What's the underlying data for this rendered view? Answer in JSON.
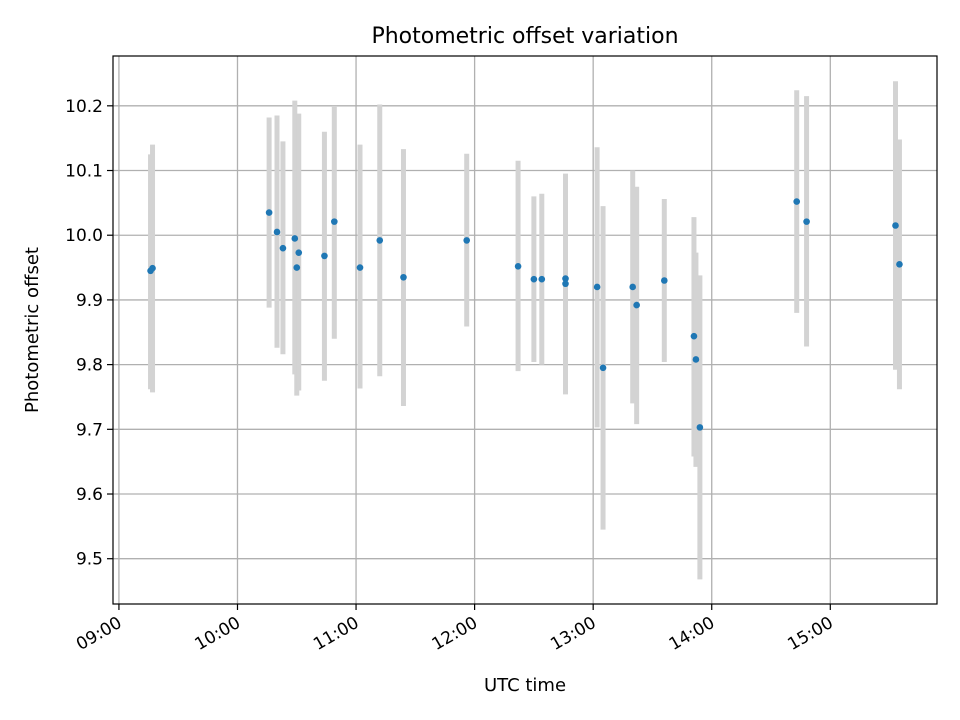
{
  "chart_data": {
    "type": "scatter",
    "title": "Photometric offset variation",
    "xlabel": "UTC time",
    "ylabel": "Photometric offset",
    "xlim": [
      "08:57",
      "15:54"
    ],
    "ylim": [
      9.43,
      10.277
    ],
    "x_ticks": [
      "09:00",
      "10:00",
      "11:00",
      "12:00",
      "13:00",
      "14:00",
      "15:00"
    ],
    "y_ticks": [
      "9.5",
      "9.6",
      "9.7",
      "9.8",
      "9.9",
      "10.0",
      "10.1",
      "10.2"
    ],
    "grid": true,
    "legend": "none",
    "colors": {
      "marker": "#1f77b4",
      "error_bar": "#d3d3d3"
    },
    "points": [
      {
        "x": "09:16",
        "y": 9.945,
        "yerr_low": 9.762,
        "yerr_high": 10.125
      },
      {
        "x": "09:17",
        "y": 9.949,
        "yerr_low": 9.757,
        "yerr_high": 10.14
      },
      {
        "x": "10:16",
        "y": 10.035,
        "yerr_low": 9.888,
        "yerr_high": 10.182
      },
      {
        "x": "10:20",
        "y": 10.005,
        "yerr_low": 9.826,
        "yerr_high": 10.185
      },
      {
        "x": "10:23",
        "y": 9.98,
        "yerr_low": 9.816,
        "yerr_high": 10.145
      },
      {
        "x": "10:29",
        "y": 9.995,
        "yerr_low": 9.785,
        "yerr_high": 10.208
      },
      {
        "x": "10:30",
        "y": 9.95,
        "yerr_low": 9.752,
        "yerr_high": 10.148
      },
      {
        "x": "10:31",
        "y": 9.973,
        "yerr_low": 9.76,
        "yerr_high": 10.188
      },
      {
        "x": "10:44",
        "y": 9.968,
        "yerr_low": 9.775,
        "yerr_high": 10.16
      },
      {
        "x": "10:49",
        "y": 10.021,
        "yerr_low": 9.84,
        "yerr_high": 10.2
      },
      {
        "x": "11:02",
        "y": 9.95,
        "yerr_low": 9.763,
        "yerr_high": 10.14
      },
      {
        "x": "11:12",
        "y": 9.992,
        "yerr_low": 9.782,
        "yerr_high": 10.202
      },
      {
        "x": "11:24",
        "y": 9.935,
        "yerr_low": 9.736,
        "yerr_high": 10.133
      },
      {
        "x": "11:56",
        "y": 9.992,
        "yerr_low": 9.859,
        "yerr_high": 10.126
      },
      {
        "x": "12:22",
        "y": 9.952,
        "yerr_low": 9.79,
        "yerr_high": 10.115
      },
      {
        "x": "12:30",
        "y": 9.932,
        "yerr_low": 9.804,
        "yerr_high": 10.06
      },
      {
        "x": "12:34",
        "y": 9.932,
        "yerr_low": 9.8,
        "yerr_high": 10.064
      },
      {
        "x": "12:46",
        "y": 9.933,
        "yerr_low": 9.77,
        "yerr_high": 10.095
      },
      {
        "x": "12:46",
        "y": 9.925,
        "yerr_low": 9.754,
        "yerr_high": 10.095
      },
      {
        "x": "13:02",
        "y": 9.92,
        "yerr_low": 9.703,
        "yerr_high": 10.136
      },
      {
        "x": "13:05",
        "y": 9.795,
        "yerr_low": 9.545,
        "yerr_high": 10.045
      },
      {
        "x": "13:20",
        "y": 9.92,
        "yerr_low": 9.74,
        "yerr_high": 10.1
      },
      {
        "x": "13:22",
        "y": 9.892,
        "yerr_low": 9.708,
        "yerr_high": 10.075
      },
      {
        "x": "13:36",
        "y": 9.93,
        "yerr_low": 9.804,
        "yerr_high": 10.056
      },
      {
        "x": "13:51",
        "y": 9.844,
        "yerr_low": 9.658,
        "yerr_high": 10.028
      },
      {
        "x": "13:52",
        "y": 9.808,
        "yerr_low": 9.642,
        "yerr_high": 9.973
      },
      {
        "x": "13:54",
        "y": 9.703,
        "yerr_low": 9.468,
        "yerr_high": 9.938
      },
      {
        "x": "14:43",
        "y": 10.052,
        "yerr_low": 9.88,
        "yerr_high": 10.224
      },
      {
        "x": "14:48",
        "y": 10.021,
        "yerr_low": 9.828,
        "yerr_high": 10.215
      },
      {
        "x": "15:33",
        "y": 10.015,
        "yerr_low": 9.792,
        "yerr_high": 10.238
      },
      {
        "x": "15:35",
        "y": 9.955,
        "yerr_low": 9.762,
        "yerr_high": 10.148
      }
    ]
  }
}
